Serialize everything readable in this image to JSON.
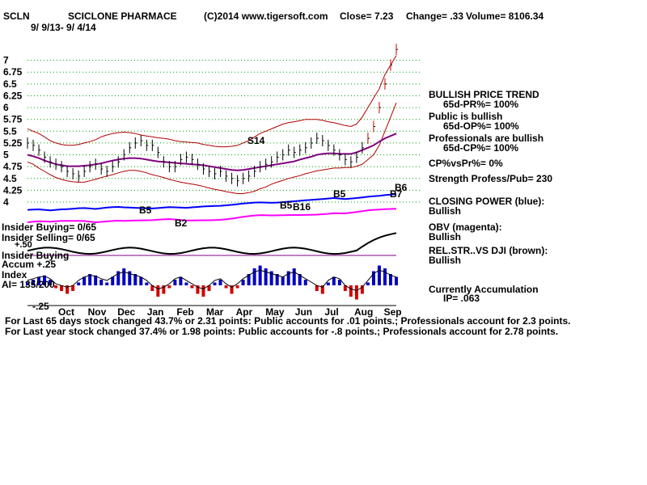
{
  "header": {
    "ticker": "SCLN",
    "company": "SCICLONE PHARMACE",
    "source": "(C)2014 www.tigersoft.com",
    "close_text": "Close=  7.23",
    "change_text": "Change= .33",
    "volume_text": "Volume= 8106.34",
    "date_range": "9/ 9/13- 9/ 4/14"
  },
  "chart_data": {
    "type": "line",
    "title": "SCICLONE PHARMACE",
    "y_ticks": [
      "7",
      "6.75",
      "6.5",
      "6.25",
      "6",
      "5.75",
      "5.5",
      "5.25",
      "5",
      "4.75",
      "4.5",
      "4.25",
      "4"
    ],
    "ylim": [
      4,
      7.25
    ],
    "months": [
      "Oct",
      "Nov",
      "Dec",
      "Jan",
      "Feb",
      "Mar",
      "Apr",
      "May",
      "Jun",
      "Jul",
      "Aug",
      "Sep"
    ],
    "grid": true,
    "series": [
      {
        "name": "Price",
        "color": "#000000",
        "values": [
          5.25,
          5.2,
          5.1,
          4.95,
          4.85,
          4.8,
          4.75,
          4.65,
          4.6,
          4.55,
          4.65,
          4.75,
          4.8,
          4.7,
          4.65,
          4.75,
          4.85,
          5.0,
          5.15,
          5.25,
          5.3,
          5.2,
          5.2,
          5.05,
          4.85,
          4.75,
          4.75,
          4.9,
          4.95,
          4.9,
          4.8,
          4.7,
          4.65,
          4.6,
          4.65,
          4.55,
          4.5,
          4.45,
          4.5,
          4.55,
          4.65,
          4.75,
          4.8,
          4.85,
          4.95,
          5.0,
          5.1,
          5.05,
          5.1,
          5.15,
          5.25,
          5.35,
          5.3,
          5.2,
          5.1,
          5.0,
          4.9,
          4.85,
          4.95,
          5.15,
          5.35,
          5.6,
          6.0,
          6.5,
          6.9,
          7.23
        ]
      }
    ],
    "upper_band": [
      5.55,
      5.5,
      5.45,
      5.38,
      5.3,
      5.25,
      5.22,
      5.2,
      5.2,
      5.22,
      5.25,
      5.28,
      5.32,
      5.38,
      5.42,
      5.45,
      5.47,
      5.48,
      5.47,
      5.45,
      5.42,
      5.4,
      5.38,
      5.36,
      5.35,
      5.33,
      5.3,
      5.28,
      5.27,
      5.26,
      5.25,
      5.22,
      5.2,
      5.18,
      5.17,
      5.17,
      5.18,
      5.2,
      5.25,
      5.3,
      5.38,
      5.45,
      5.5,
      5.55,
      5.6,
      5.65,
      5.68,
      5.7,
      5.72,
      5.75,
      5.75,
      5.75,
      5.73,
      5.7,
      5.68,
      5.65,
      5.62,
      5.6,
      5.65,
      5.8,
      6.0,
      6.2,
      6.4,
      6.7,
      6.9,
      7.1
    ],
    "lower_band": [
      4.85,
      4.8,
      4.72,
      4.65,
      4.58,
      4.52,
      4.48,
      4.45,
      4.43,
      4.42,
      4.42,
      4.45,
      4.48,
      4.52,
      4.55,
      4.58,
      4.62,
      4.65,
      4.67,
      4.67,
      4.65,
      4.62,
      4.58,
      4.55,
      4.52,
      4.48,
      4.45,
      4.42,
      4.4,
      4.38,
      4.36,
      4.33,
      4.3,
      4.27,
      4.25,
      4.22,
      4.2,
      4.18,
      4.18,
      4.2,
      4.23,
      4.28,
      4.32,
      4.38,
      4.42,
      4.46,
      4.5,
      4.53,
      4.56,
      4.6,
      4.63,
      4.66,
      4.68,
      4.7,
      4.72,
      4.72,
      4.73,
      4.73,
      4.76,
      4.8,
      4.9,
      5.0,
      5.2,
      5.5,
      5.8,
      6.1
    ],
    "ma": [
      5.0,
      4.97,
      4.93,
      4.88,
      4.84,
      4.8,
      4.78,
      4.76,
      4.76,
      4.76,
      4.77,
      4.78,
      4.8,
      4.82,
      4.85,
      4.88,
      4.9,
      4.92,
      4.93,
      4.93,
      4.92,
      4.9,
      4.88,
      4.86,
      4.85,
      4.84,
      4.83,
      4.82,
      4.81,
      4.8,
      4.79,
      4.78,
      4.76,
      4.74,
      4.72,
      4.7,
      4.68,
      4.67,
      4.68,
      4.7,
      4.72,
      4.74,
      4.76,
      4.78,
      4.8,
      4.82,
      4.84,
      4.86,
      4.9,
      4.93,
      4.96,
      5.0,
      5.02,
      5.03,
      5.03,
      5.02,
      5.02,
      5.02,
      5.05,
      5.1,
      5.15,
      5.2,
      5.28,
      5.35,
      5.4,
      5.45
    ],
    "annotations": [
      "S14",
      "B5",
      "B2",
      "B5",
      "B16",
      "B5",
      "B7",
      "B6"
    ],
    "closing_power_levels": [
      0.3,
      0.31,
      0.32,
      0.3,
      0.28,
      0.3,
      0.32,
      0.33,
      0.35,
      0.37,
      0.38,
      0.36,
      0.34,
      0.37,
      0.4,
      0.42,
      0.43,
      0.41,
      0.4,
      0.39,
      0.38,
      0.37,
      0.36,
      0.38,
      0.4,
      0.42,
      0.41,
      0.4,
      0.39,
      0.41,
      0.43,
      0.45,
      0.46,
      0.47,
      0.48,
      0.5,
      0.52,
      0.55,
      0.58,
      0.6,
      0.62,
      0.63,
      0.62,
      0.61,
      0.62,
      0.64,
      0.66,
      0.68,
      0.7,
      0.72,
      0.74,
      0.76,
      0.78,
      0.8,
      0.82,
      0.8,
      0.78,
      0.8,
      0.82,
      0.85,
      0.88,
      0.9,
      0.92,
      0.95,
      0.97,
      1.0
    ],
    "accumulation": [
      0.1,
      0.2,
      0.3,
      0.35,
      0.2,
      -0.1,
      -0.2,
      -0.3,
      -0.2,
      0.1,
      0.3,
      0.4,
      0.35,
      0.2,
      0.1,
      0.3,
      0.5,
      0.6,
      0.5,
      0.4,
      0.3,
      0.1,
      -0.2,
      -0.4,
      -0.3,
      -0.1,
      0.2,
      0.3,
      0.1,
      -0.1,
      -0.3,
      -0.4,
      -0.2,
      0.1,
      0.2,
      -0.1,
      -0.3,
      -0.1,
      0.2,
      0.4,
      0.6,
      0.7,
      0.6,
      0.5,
      0.4,
      0.3,
      0.5,
      0.6,
      0.4,
      0.2,
      0.0,
      -0.2,
      -0.3,
      0.1,
      0.3,
      0.2,
      -0.2,
      -0.4,
      -0.5,
      -0.3,
      0.1,
      0.5,
      0.7,
      0.6,
      0.4,
      0.3
    ]
  },
  "left_labels": {
    "insider1": "Insider Buying= 0/65",
    "insider2": "Insider Selling= 0/65",
    "insider3": "Insider Buying",
    "plus50": "+.50",
    "accum_plus": "Accum  +.25",
    "index_word": "Index",
    "ai": "AI= 135/200",
    "minus25": "-.25"
  },
  "right_panel": {
    "trend_title": "BULLISH PRICE TREND",
    "trend_value": "65d-PR%= 100%",
    "public_title": "Public is bullish",
    "public_value": "65d-OP%= 100%",
    "prof_title": "Professionals are bullish",
    "prof_value": "65d-CP%= 100%",
    "cpvs": "CP%vsPr%=  0%",
    "strength": "Strength Profess/Pub= 230",
    "cp_title": "CLOSING POWER (blue):",
    "cp_value": "Bullish",
    "obv_title": "OBV (magenta):",
    "obv_value": "Bullish",
    "rel_title": "REL.STR..VS DJI (brown):",
    "rel_value": "Bullish",
    "acc_title": "Currently Accumulation",
    "acc_value": "IP=  .063"
  },
  "footer": {
    "line1": "For Last 65 days stock changed  43.7% or  2.31 points:  Public accounts for  .01 points.;  Professionals account for  2.3 points.",
    "line2": "For Last year stock changed  37.4% or  1.98 points:  Public accounts for -.8 points.;  Professionals account for  2.78 points."
  },
  "colors": {
    "price": "#000000",
    "bands": "#b00000",
    "ma": "#800080",
    "closing_power": "#0000ff",
    "obv": "#ff00ff",
    "relstr": "#000000",
    "accum_pos": "#0000c0",
    "accum_neg": "#d00000",
    "grid": "#00a000"
  }
}
